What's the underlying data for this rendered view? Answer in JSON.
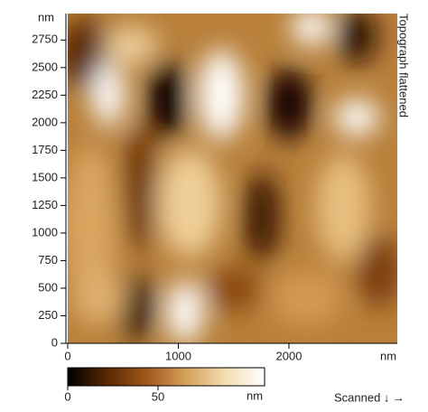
{
  "chart_data": {
    "type": "image",
    "title": "Topograph flattened",
    "footer": "Scanned ↓ →",
    "x_unit": "nm",
    "y_unit": "nm",
    "xlim": [
      0,
      2980
    ],
    "ylim": [
      0,
      2990
    ],
    "xticks": [
      0,
      1000,
      2000
    ],
    "yticks": [
      0,
      250,
      500,
      750,
      1000,
      1250,
      1500,
      1750,
      2000,
      2250,
      2500,
      2750
    ],
    "colorbar": {
      "lim": [
        0,
        109
      ],
      "ticks": [
        0,
        50
      ],
      "unit": "nm",
      "colors": [
        "#000000",
        "#5a2800",
        "#a0561a",
        "#d4a15a",
        "#f3dcb0",
        "#ffffff"
      ]
    }
  }
}
